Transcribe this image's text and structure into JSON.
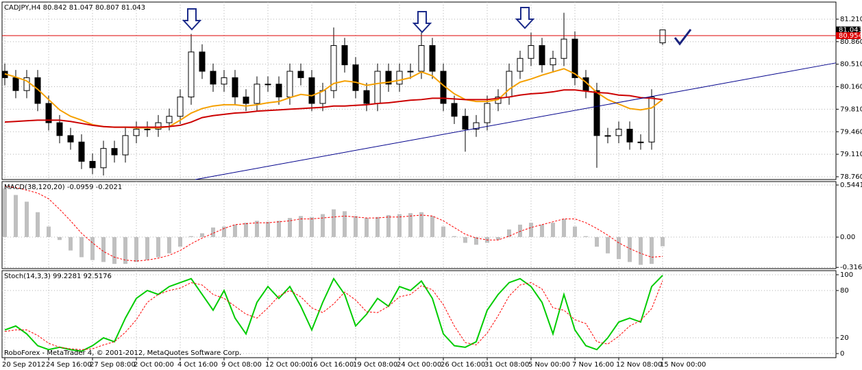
{
  "chart_data": [
    {
      "type": "candlestick",
      "title": "CADJPY,H4  80.842 81.047 80.807 81.043",
      "categories": [
        "20 Sep 2012",
        null,
        null,
        null,
        "24 Sep 16:00",
        null,
        null,
        null,
        "27 Sep 08:00",
        null,
        null,
        null,
        "2 Oct 00:00",
        null,
        null,
        null,
        "4 Oct 16:00",
        null,
        null,
        null,
        "9 Oct 08:00",
        null,
        null,
        null,
        "12 Oct 00:00",
        null,
        null,
        null,
        "16 Oct 16:00",
        null,
        null,
        null,
        "19 Oct 08:00",
        null,
        null,
        null,
        "24 Oct 00:00",
        null,
        null,
        null,
        "26 Oct 16:00",
        null,
        null,
        null,
        "31 Oct 08:00",
        null,
        null,
        null,
        "5 Nov 00:00",
        null,
        null,
        null,
        "7 Nov 16:00",
        null,
        null,
        null,
        "12 Nov 08:00",
        null,
        null,
        null,
        "15 Nov 00:00"
      ],
      "open": [
        80.4,
        80.3,
        80.1,
        80.3,
        79.9,
        79.6,
        79.4,
        79.3,
        79.0,
        78.9,
        79.2,
        79.1,
        79.4,
        79.5,
        79.5,
        79.6,
        79.7,
        80.0,
        80.7,
        80.4,
        80.2,
        80.3,
        80.0,
        79.9,
        80.2,
        80.2,
        80.0,
        80.4,
        80.3,
        79.9,
        80.1,
        80.8,
        80.5,
        80.1,
        79.9,
        80.4,
        80.2,
        80.4,
        80.4,
        80.8,
        80.4,
        79.9,
        79.7,
        79.5,
        79.6,
        79.9,
        80.0,
        80.4,
        80.6,
        80.8,
        80.5,
        80.6,
        80.9,
        80.3,
        80.1,
        79.4,
        79.4,
        79.5,
        79.3,
        79.3,
        80.842
      ],
      "high": [
        80.52,
        80.42,
        80.42,
        80.42,
        80.02,
        79.72,
        79.52,
        79.42,
        79.12,
        79.32,
        79.32,
        79.52,
        79.62,
        79.62,
        79.72,
        79.82,
        80.12,
        80.98,
        80.82,
        80.52,
        80.42,
        80.42,
        80.12,
        80.32,
        80.32,
        80.32,
        80.52,
        80.52,
        80.42,
        80.22,
        81.08,
        80.92,
        80.62,
        80.22,
        80.52,
        80.52,
        80.52,
        80.52,
        81.0,
        80.92,
        80.52,
        80.02,
        79.82,
        79.72,
        80.02,
        80.12,
        80.52,
        80.72,
        81.0,
        80.92,
        80.72,
        81.31,
        81.02,
        80.42,
        80.22,
        79.52,
        79.62,
        79.62,
        79.42,
        80.12,
        81.047
      ],
      "low": [
        80.18,
        79.98,
        79.98,
        79.78,
        79.48,
        79.28,
        79.18,
        78.88,
        78.8,
        78.78,
        78.98,
        78.98,
        79.28,
        79.38,
        79.38,
        79.48,
        79.58,
        79.88,
        80.28,
        80.08,
        80.08,
        79.88,
        79.78,
        79.78,
        80.08,
        79.88,
        79.88,
        80.18,
        79.78,
        79.78,
        79.98,
        80.38,
        79.98,
        79.78,
        79.78,
        80.08,
        80.08,
        80.28,
        80.28,
        80.28,
        79.78,
        79.58,
        79.15,
        79.38,
        79.48,
        79.78,
        79.88,
        80.28,
        80.48,
        80.38,
        80.38,
        80.48,
        80.18,
        79.98,
        78.9,
        79.28,
        79.28,
        79.18,
        79.18,
        79.18,
        80.807
      ],
      "close": [
        80.3,
        80.1,
        80.3,
        79.9,
        79.6,
        79.4,
        79.3,
        79.0,
        78.9,
        79.2,
        79.1,
        79.4,
        79.5,
        79.5,
        79.6,
        79.7,
        80.0,
        80.7,
        80.4,
        80.2,
        80.3,
        80.0,
        79.9,
        80.2,
        80.2,
        80.0,
        80.4,
        80.3,
        79.9,
        80.1,
        80.8,
        80.5,
        80.1,
        79.9,
        80.4,
        80.2,
        80.4,
        80.4,
        80.8,
        80.4,
        79.9,
        79.7,
        79.5,
        79.6,
        79.9,
        80.0,
        80.4,
        80.6,
        80.8,
        80.5,
        80.6,
        80.9,
        80.3,
        80.1,
        79.4,
        79.4,
        79.5,
        79.3,
        79.3,
        80.0,
        81.043
      ],
      "up_color": "#ffffff",
      "down_color": "#000000",
      "color": "#000000",
      "series": [
        {
          "color": "#f5a000",
          "values": [
            80.36,
            80.31,
            80.25,
            80.12,
            79.96,
            79.8,
            79.7,
            79.64,
            79.57,
            79.54,
            79.53,
            79.53,
            79.52,
            79.52,
            79.52,
            79.54,
            79.64,
            79.75,
            79.82,
            79.86,
            79.88,
            79.88,
            79.86,
            79.88,
            79.91,
            79.93,
            79.99,
            80.04,
            80.02,
            80.09,
            80.21,
            80.25,
            80.23,
            80.18,
            80.21,
            80.23,
            80.26,
            80.3,
            80.39,
            80.33,
            80.18,
            80.05,
            79.96,
            79.93,
            79.93,
            79.96,
            80.12,
            80.23,
            80.28,
            80.34,
            80.39,
            80.44,
            80.36,
            80.23,
            80.07,
            79.96,
            79.89,
            79.82,
            79.8,
            79.83,
            79.96
          ]
        },
        {
          "color": "#cc0000",
          "values": [
            79.61,
            79.62,
            79.63,
            79.64,
            79.64,
            79.64,
            79.62,
            79.59,
            79.56,
            79.54,
            79.53,
            79.53,
            79.53,
            79.53,
            79.53,
            79.54,
            79.56,
            79.61,
            79.68,
            79.71,
            79.73,
            79.75,
            79.76,
            79.78,
            79.79,
            79.8,
            79.81,
            79.82,
            79.83,
            79.84,
            79.86,
            79.86,
            79.87,
            79.88,
            79.9,
            79.91,
            79.93,
            79.95,
            79.96,
            79.98,
            79.98,
            79.97,
            79.96,
            79.96,
            79.96,
            79.98,
            80.0,
            80.03,
            80.05,
            80.06,
            80.08,
            80.11,
            80.11,
            80.09,
            80.07,
            80.06,
            80.03,
            80.02,
            79.99,
            79.98,
            79.96
          ]
        }
      ],
      "trendline": {
        "color": "#00008b",
        "values": [
          78.717,
          80.53
        ]
      },
      "level": {
        "value": 80.954,
        "label": "80.954",
        "color": "#dd0000"
      },
      "last_price": {
        "value": 81.043,
        "label": "81.043"
      },
      "ylim": [
        78.717,
        81.476
      ],
      "yticks": [
        {
          "value": 78.76,
          "label": "78.760"
        },
        {
          "value": 79.11,
          "label": "79.110"
        },
        {
          "value": 79.46,
          "label": "79.460"
        },
        {
          "value": 79.81,
          "label": "79.810"
        },
        {
          "value": 80.16,
          "label": "80.160"
        },
        {
          "value": 80.51,
          "label": "80.510"
        },
        {
          "value": 80.86,
          "label": "80.860"
        },
        {
          "value": 81.21,
          "label": "81.210"
        }
      ],
      "grid": true
    },
    {
      "type": "macd",
      "title": "MACD(38,120,20) -0.0959 -0.2021",
      "series": [
        {
          "color": "#c0c0c0",
          "values": [
            0.51,
            0.44,
            0.37,
            0.26,
            0.11,
            -0.03,
            -0.14,
            -0.21,
            -0.24,
            -0.26,
            -0.28,
            -0.28,
            -0.26,
            -0.24,
            -0.21,
            -0.17,
            -0.1,
            0.01,
            0.04,
            0.1,
            0.11,
            0.13,
            0.15,
            0.17,
            0.16,
            0.17,
            0.2,
            0.22,
            0.21,
            0.24,
            0.29,
            0.27,
            0.22,
            0.2,
            0.21,
            0.23,
            0.24,
            0.25,
            0.26,
            0.22,
            0.11,
            0.01,
            -0.06,
            -0.08,
            -0.06,
            -0.03,
            0.08,
            0.13,
            0.15,
            0.13,
            0.15,
            0.19,
            0.11,
            0.01,
            -0.1,
            -0.17,
            -0.23,
            -0.26,
            -0.29,
            -0.28,
            -0.0959
          ]
        },
        {
          "color": "#ff0000",
          "values": [
            0.53,
            0.52,
            0.49,
            0.46,
            0.4,
            0.29,
            0.17,
            0.04,
            -0.06,
            -0.15,
            -0.21,
            -0.24,
            -0.25,
            -0.24,
            -0.22,
            -0.19,
            -0.14,
            -0.07,
            -0.01,
            0.04,
            0.09,
            0.13,
            0.14,
            0.15,
            0.15,
            0.16,
            0.17,
            0.19,
            0.19,
            0.2,
            0.21,
            0.22,
            0.21,
            0.2,
            0.2,
            0.21,
            0.21,
            0.22,
            0.23,
            0.22,
            0.17,
            0.1,
            0.03,
            -0.01,
            -0.03,
            -0.03,
            0.01,
            0.06,
            0.1,
            0.13,
            0.16,
            0.19,
            0.19,
            0.15,
            0.09,
            0.02,
            -0.06,
            -0.12,
            -0.17,
            -0.21,
            -0.2021
          ]
        }
      ],
      "ylim": [
        -0.329,
        0.58
      ],
      "yticks": [
        -0.3163,
        {
          "value": 0,
          "label": "0.00"
        },
        0.5441
      ],
      "grid": true
    },
    {
      "type": "line",
      "title": "Stoch(14,3,3) 99.2281 92.5176",
      "footer": "RoboForex - MetaTrader 4, © 2001-2012, MetaQuotes Software Corp.",
      "series": [
        {
          "color": "#00cc00",
          "values": [
            30,
            35,
            25,
            10,
            5,
            8,
            5,
            3,
            10,
            20,
            15,
            45,
            70,
            80,
            75,
            85,
            90,
            95,
            75,
            55,
            80,
            45,
            25,
            65,
            85,
            70,
            85,
            60,
            30,
            65,
            95,
            75,
            35,
            50,
            70,
            60,
            85,
            80,
            92,
            70,
            25,
            10,
            8,
            15,
            55,
            75,
            90,
            95,
            85,
            65,
            25,
            75,
            30,
            10,
            5,
            20,
            40,
            45,
            40,
            85,
            99.2281
          ]
        },
        {
          "color": "#ff0000",
          "values": [
            28,
            30,
            30,
            23,
            13,
            8,
            6,
            5,
            6,
            11,
            15,
            27,
            43,
            65,
            75,
            80,
            83,
            90,
            87,
            75,
            70,
            60,
            50,
            45,
            58,
            73,
            80,
            72,
            58,
            52,
            63,
            78,
            68,
            53,
            52,
            60,
            72,
            75,
            86,
            81,
            62,
            35,
            14,
            11,
            26,
            48,
            73,
            87,
            90,
            82,
            58,
            55,
            43,
            38,
            15,
            12,
            22,
            35,
            42,
            57,
            92.5176
          ]
        }
      ],
      "ylim": [
        -5.2,
        105.2
      ],
      "yticks": [
        0,
        20,
        80,
        100
      ],
      "grid": true
    }
  ]
}
